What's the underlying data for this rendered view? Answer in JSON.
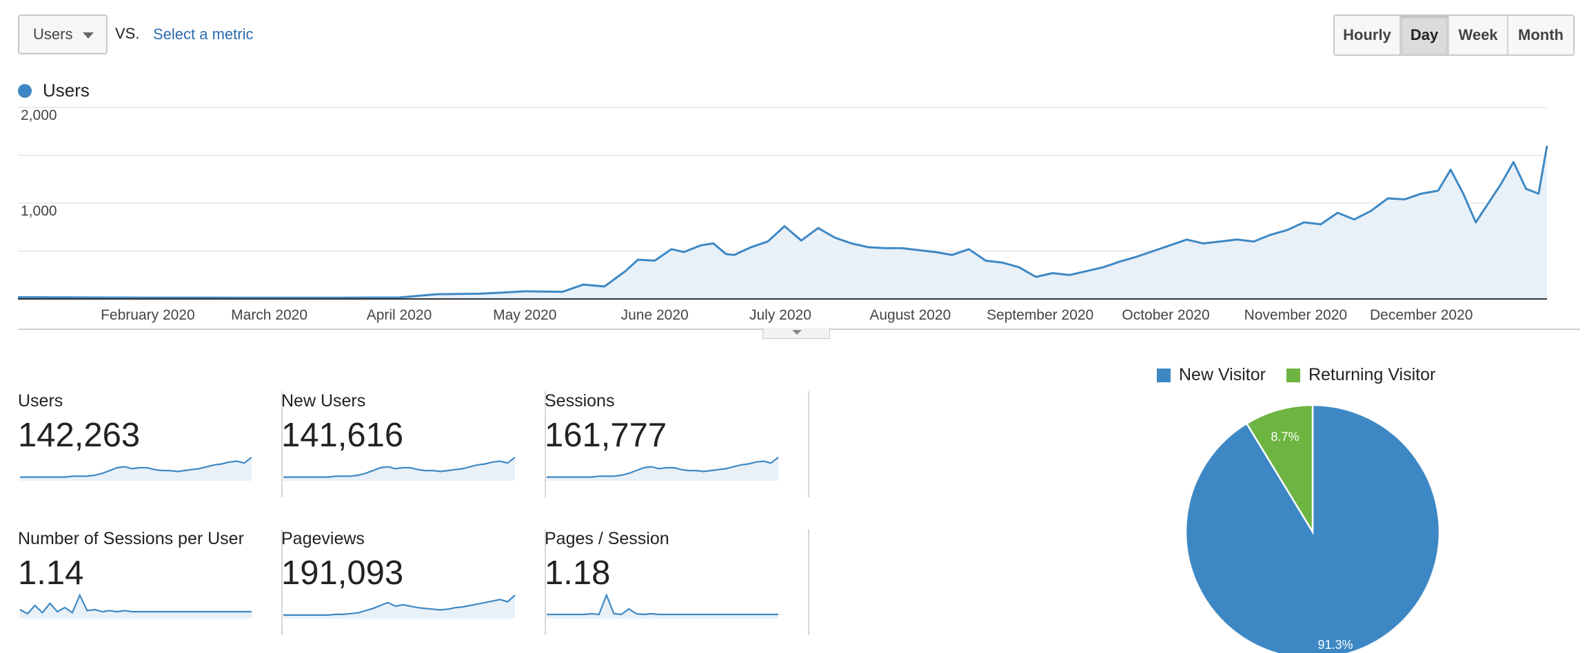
{
  "toolbar": {
    "metric_selected": "Users",
    "vs_label": "VS.",
    "select_metric_link": "Select a metric",
    "granularity_buttons": [
      "Hourly",
      "Day",
      "Week",
      "Month"
    ],
    "granularity_active": "Day"
  },
  "colors": {
    "series_line": "#3d88c4",
    "series_fill": "#e8f0f8",
    "new_visitor": "#3d88c4",
    "returning_visitor": "#6eb442",
    "grid": "#e6e6e6",
    "axis": "#333333"
  },
  "chart_data": [
    {
      "type": "area",
      "series": [
        {
          "name": "Users",
          "x": [
            "2020-01-01",
            "2020-01-15",
            "2020-02-01",
            "2020-02-15",
            "2020-03-01",
            "2020-03-15",
            "2020-04-01",
            "2020-04-10",
            "2020-04-20",
            "2020-04-25",
            "2020-05-01",
            "2020-05-10",
            "2020-05-15",
            "2020-05-20",
            "2020-05-25",
            "2020-05-28",
            "2020-06-01",
            "2020-06-05",
            "2020-06-08",
            "2020-06-12",
            "2020-06-15",
            "2020-06-18",
            "2020-06-20",
            "2020-06-24",
            "2020-06-28",
            "2020-07-02",
            "2020-07-06",
            "2020-07-10",
            "2020-07-14",
            "2020-07-18",
            "2020-07-22",
            "2020-07-26",
            "2020-07-30",
            "2020-08-03",
            "2020-08-07",
            "2020-08-11",
            "2020-08-15",
            "2020-08-19",
            "2020-08-23",
            "2020-08-27",
            "2020-08-31",
            "2020-09-04",
            "2020-09-08",
            "2020-09-12",
            "2020-09-16",
            "2020-09-20",
            "2020-09-24",
            "2020-09-28",
            "2020-10-02",
            "2020-10-06",
            "2020-10-10",
            "2020-10-14",
            "2020-10-18",
            "2020-10-22",
            "2020-10-26",
            "2020-10-30",
            "2020-11-03",
            "2020-11-07",
            "2020-11-11",
            "2020-11-15",
            "2020-11-19",
            "2020-11-23",
            "2020-11-27",
            "2020-12-01",
            "2020-12-05",
            "2020-12-08",
            "2020-12-11",
            "2020-12-14",
            "2020-12-17",
            "2020-12-20",
            "2020-12-23",
            "2020-12-26",
            "2020-12-29",
            "2020-12-31"
          ],
          "values": [
            18,
            16,
            14,
            14,
            12,
            12,
            15,
            50,
            55,
            65,
            80,
            75,
            150,
            130,
            290,
            410,
            400,
            520,
            490,
            560,
            580,
            470,
            460,
            540,
            600,
            760,
            610,
            740,
            640,
            580,
            540,
            530,
            530,
            510,
            490,
            460,
            520,
            400,
            380,
            330,
            230,
            270,
            250,
            290,
            330,
            390,
            440,
            500,
            560,
            620,
            580,
            600,
            620,
            600,
            670,
            720,
            800,
            780,
            900,
            830,
            920,
            1050,
            1040,
            1100,
            1130,
            1350,
            1100,
            800,
            1000,
            1200,
            1430,
            1150,
            1100,
            1600
          ],
          "color": "#3d88c4"
        }
      ],
      "ylim": [
        0,
        2000
      ],
      "yticks": [
        "2,000",
        "1,000"
      ],
      "xtick_labels": [
        "February 2020",
        "March 2020",
        "April 2020",
        "May 2020",
        "June 2020",
        "July 2020",
        "August 2020",
        "September 2020",
        "October 2020",
        "November 2020",
        "December 2020"
      ],
      "grid": true,
      "legend": "top-left"
    },
    {
      "type": "pie",
      "labels": [
        "New Visitor",
        "Returning Visitor"
      ],
      "values": [
        91.3,
        8.7
      ],
      "value_labels": [
        "91.3%",
        "8.7%"
      ],
      "colors": [
        "#3d88c4",
        "#6eb442"
      ],
      "legend": "top"
    }
  ],
  "scorecards": [
    {
      "label": "Users",
      "value": "142,263",
      "spark": [
        1,
        1,
        1,
        1,
        1,
        1,
        1,
        2,
        2,
        2,
        3,
        5,
        8,
        11,
        12,
        10,
        11,
        11,
        9,
        8,
        8,
        7,
        8,
        9,
        10,
        12,
        14,
        15,
        17,
        18,
        16,
        22
      ]
    },
    {
      "label": "New Users",
      "value": "141,616",
      "spark": [
        1,
        1,
        1,
        1,
        1,
        1,
        1,
        2,
        2,
        2,
        3,
        5,
        8,
        11,
        12,
        10,
        11,
        11,
        9,
        8,
        8,
        7,
        8,
        9,
        10,
        12,
        14,
        15,
        17,
        18,
        16,
        22
      ]
    },
    {
      "label": "Sessions",
      "value": "161,777",
      "spark": [
        1,
        1,
        1,
        1,
        1,
        1,
        1,
        2,
        2,
        2,
        3,
        5,
        8,
        11,
        12,
        10,
        11,
        11,
        9,
        8,
        8,
        7,
        8,
        9,
        10,
        12,
        14,
        15,
        17,
        18,
        16,
        22
      ]
    },
    {
      "label": "Number of Sessions per User",
      "value": "1.14",
      "spark": [
        6,
        2,
        10,
        3,
        12,
        4,
        8,
        3,
        20,
        5,
        6,
        4,
        5,
        4,
        5,
        4,
        4,
        4,
        4,
        4,
        4,
        4,
        4,
        4,
        4,
        4,
        4,
        4,
        4,
        4,
        4,
        4
      ]
    },
    {
      "label": "Pageviews",
      "value": "191,093",
      "spark": [
        1,
        1,
        1,
        1,
        1,
        1,
        1,
        2,
        2,
        3,
        4,
        7,
        10,
        14,
        18,
        13,
        15,
        13,
        11,
        10,
        9,
        8,
        9,
        11,
        12,
        14,
        16,
        18,
        20,
        22,
        19,
        28
      ]
    },
    {
      "label": "Pages / Session",
      "value": "1.18",
      "spark": [
        2,
        2,
        2,
        2,
        2,
        2,
        3,
        2,
        30,
        3,
        2,
        10,
        3,
        2,
        3,
        2,
        2,
        2,
        2,
        2,
        2,
        2,
        2,
        2,
        2,
        2,
        2,
        2,
        2,
        2,
        2,
        2
      ]
    }
  ]
}
